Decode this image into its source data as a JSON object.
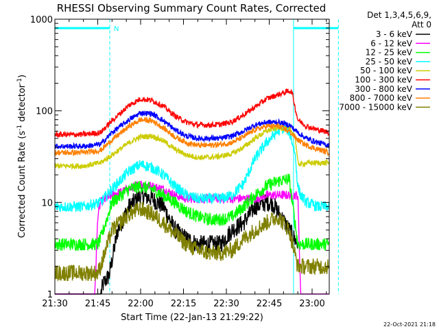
{
  "chart_data": {
    "type": "line",
    "title": "RHESSI Observing Summary Count Rates, Corrected",
    "xlabel": "Start Time (22-Jan-13 21:29:22)",
    "ylabel_main": "Corrected Count Rate (s",
    "ylabel_sup1": "-1",
    "ylabel_mid": " detector",
    "ylabel_sup2": "-1",
    "ylabel_end": ")",
    "yscale": "log",
    "ylim": [
      1,
      1000
    ],
    "xlim_minutes": [
      0,
      96
    ],
    "x_tick_labels": [
      "21:30",
      "21:45",
      "22:00",
      "22:15",
      "22:30",
      "22:45",
      "23:00"
    ],
    "x_tick_minutes": [
      0,
      15,
      30,
      45,
      60,
      75,
      90
    ],
    "y_tick_labels": [
      "1",
      "10",
      "100",
      "1000"
    ],
    "y_tick_values": [
      1,
      10,
      100,
      1000
    ],
    "legend_header": [
      "Det 1,3,4,5,6,9,",
      "Att 0"
    ],
    "legend_position": "right",
    "footer": "22-Oct-2021 21:18",
    "night_marker": "N",
    "attenuator_lines_minutes": [
      0,
      19.2,
      83.5,
      99.2
    ],
    "night_bars_minutes": [
      [
        0,
        19.2
      ],
      [
        83.5,
        99.2
      ]
    ],
    "series": [
      {
        "name": "3 - 6 keV",
        "color": "#000000",
        "x": [
          0,
          16,
          17,
          19,
          22,
          26,
          30,
          34,
          38,
          42,
          46,
          50,
          54,
          58,
          62,
          66,
          70,
          74,
          76,
          78,
          82,
          85
        ],
        "y": [
          1.0,
          1.0,
          1.3,
          1.6,
          5,
          9,
          12,
          11,
          9,
          5,
          4,
          3.5,
          3.5,
          3.5,
          5,
          6,
          9,
          10,
          10,
          8,
          5,
          3.5
        ]
      },
      {
        "name": "6 - 12 keV",
        "color": "#ff00ff",
        "x": [
          0,
          14,
          15,
          16,
          20,
          26,
          30,
          34,
          38,
          42,
          46,
          50,
          54,
          58,
          62,
          66,
          70,
          74,
          78,
          82,
          85,
          86,
          87,
          96
        ],
        "y": [
          1.0,
          1.0,
          7,
          10,
          12,
          14,
          16,
          15,
          14,
          12,
          11,
          11,
          11,
          11,
          11,
          11,
          11,
          12,
          12,
          12,
          12,
          1.0,
          1.0,
          1.0
        ]
      },
      {
        "name": "12 - 25 keV",
        "color": "#00ff00",
        "x": [
          0,
          15,
          16,
          20,
          26,
          30,
          34,
          38,
          42,
          46,
          50,
          54,
          58,
          62,
          66,
          70,
          74,
          78,
          82,
          85,
          96
        ],
        "y": [
          3.5,
          3.5,
          4.0,
          10,
          14,
          15,
          14,
          12,
          10,
          8,
          7,
          6.5,
          6.5,
          7,
          9,
          12,
          15,
          17,
          18,
          3.5,
          3.5
        ]
      },
      {
        "name": "25 - 50 keV",
        "color": "#00ffff",
        "x": [
          0,
          10,
          16,
          20,
          26,
          30,
          34,
          38,
          42,
          46,
          50,
          54,
          58,
          62,
          66,
          70,
          74,
          78,
          80,
          82,
          84,
          85,
          86,
          88,
          92,
          96
        ],
        "y": [
          9,
          9,
          10,
          14,
          22,
          26,
          24,
          20,
          15,
          12,
          11,
          11,
          11,
          12,
          16,
          30,
          45,
          60,
          65,
          60,
          35,
          15,
          12,
          10,
          9,
          9
        ]
      },
      {
        "name": "50 - 100 keV",
        "color": "#cccc00",
        "x": [
          0,
          10,
          16,
          20,
          26,
          30,
          34,
          38,
          42,
          46,
          50,
          54,
          58,
          62,
          66,
          70,
          74,
          78,
          82,
          84,
          85,
          86,
          88,
          92,
          96
        ],
        "y": [
          25,
          25,
          27,
          33,
          45,
          52,
          53,
          47,
          38,
          33,
          31,
          31,
          32,
          34,
          40,
          50,
          60,
          66,
          63,
          55,
          27,
          26,
          27,
          27,
          27
        ]
      },
      {
        "name": "100 - 300 keV",
        "color": "#ff0000",
        "x": [
          0,
          10,
          16,
          20,
          26,
          30,
          34,
          38,
          42,
          46,
          50,
          54,
          58,
          62,
          66,
          70,
          74,
          78,
          82,
          83,
          84,
          85,
          88,
          92,
          96
        ],
        "y": [
          55,
          55,
          58,
          78,
          115,
          135,
          130,
          112,
          88,
          75,
          70,
          70,
          71,
          76,
          90,
          110,
          135,
          150,
          165,
          160,
          110,
          80,
          68,
          62,
          58
        ]
      },
      {
        "name": "300 - 800 keV",
        "color": "#0000ff",
        "x": [
          0,
          10,
          16,
          20,
          26,
          30,
          34,
          38,
          42,
          46,
          50,
          54,
          58,
          62,
          66,
          70,
          74,
          78,
          82,
          85,
          88,
          92,
          96
        ],
        "y": [
          41,
          41,
          43,
          58,
          80,
          95,
          93,
          78,
          62,
          53,
          50,
          50,
          50,
          53,
          60,
          70,
          75,
          75,
          70,
          58,
          50,
          45,
          42
        ]
      },
      {
        "name": "800 - 7000 keV",
        "color": "#ff8000",
        "x": [
          0,
          10,
          16,
          20,
          26,
          30,
          34,
          38,
          42,
          46,
          50,
          54,
          58,
          62,
          66,
          70,
          74,
          78,
          82,
          85,
          88,
          92,
          96
        ],
        "y": [
          35,
          35,
          37,
          48,
          68,
          80,
          78,
          65,
          52,
          45,
          42,
          42,
          43,
          45,
          52,
          62,
          68,
          68,
          60,
          48,
          42,
          38,
          35
        ]
      },
      {
        "name": "7000 - 15000 keV",
        "color": "#808000",
        "x": [
          0,
          15,
          16,
          20,
          26,
          30,
          34,
          38,
          42,
          46,
          50,
          54,
          58,
          62,
          66,
          70,
          74,
          78,
          82,
          85,
          96
        ],
        "y": [
          1.7,
          1.7,
          2.0,
          5,
          7.5,
          8.5,
          7.5,
          6,
          4.5,
          3.5,
          3.0,
          2.8,
          2.8,
          3.0,
          4,
          5,
          6,
          7,
          5,
          2.0,
          2.0
        ]
      }
    ]
  }
}
